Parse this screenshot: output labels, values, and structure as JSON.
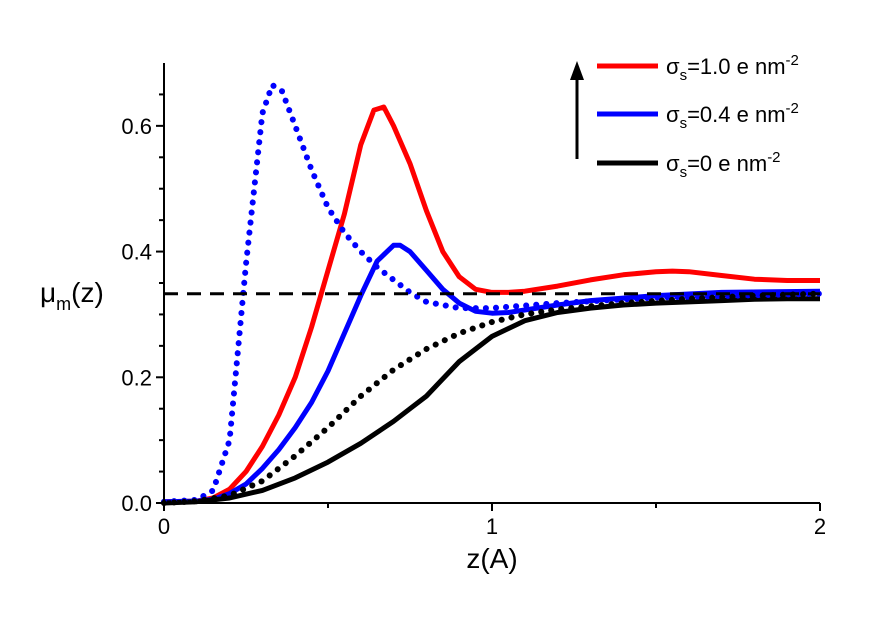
{
  "chart_data": {
    "type": "line",
    "title": "",
    "xlabel": "z(A)",
    "ylabel": {
      "base": "μ",
      "sub": "m",
      "rest": "(z)"
    },
    "xlim": [
      0,
      2
    ],
    "ylim": [
      0,
      0.7
    ],
    "xticks": [
      0,
      1,
      2
    ],
    "xtick_labels": [
      "0",
      "1",
      "2"
    ],
    "yticks": [
      0.0,
      0.2,
      0.4,
      0.6
    ],
    "ytick_labels": [
      "0.0",
      "0.2",
      "0.4",
      "0.6"
    ],
    "grid": false,
    "legend_position": "top-right",
    "legend_arrow": "upward arrow beside legend indicating increasing surface charge",
    "series": [
      {
        "name": "σs=1.0 e nm-2",
        "label_parts": {
          "sym": "σ",
          "sub": "s",
          "value": "=1.0 e nm",
          "sup": "-2"
        },
        "color": "#ff0000",
        "style": "solid",
        "in_legend": true,
        "x": [
          0,
          0.1,
          0.15,
          0.2,
          0.25,
          0.3,
          0.35,
          0.4,
          0.45,
          0.5,
          0.55,
          0.6,
          0.64,
          0.67,
          0.7,
          0.75,
          0.8,
          0.85,
          0.9,
          0.95,
          1.0,
          1.05,
          1.1,
          1.2,
          1.3,
          1.4,
          1.5,
          1.55,
          1.6,
          1.7,
          1.8,
          1.9,
          2.0
        ],
        "y": [
          0.002,
          0.003,
          0.008,
          0.022,
          0.05,
          0.09,
          0.14,
          0.2,
          0.28,
          0.37,
          0.46,
          0.57,
          0.625,
          0.63,
          0.6,
          0.54,
          0.465,
          0.4,
          0.36,
          0.34,
          0.335,
          0.335,
          0.337,
          0.345,
          0.355,
          0.363,
          0.368,
          0.369,
          0.368,
          0.362,
          0.356,
          0.354,
          0.354
        ]
      },
      {
        "name": "σs=0.4 e nm-2",
        "label_parts": {
          "sym": "σ",
          "sub": "s",
          "value": "=0.4 e nm",
          "sup": "-2"
        },
        "color": "#0000ff",
        "style": "solid",
        "in_legend": true,
        "x": [
          0,
          0.1,
          0.15,
          0.2,
          0.25,
          0.3,
          0.35,
          0.4,
          0.45,
          0.5,
          0.55,
          0.6,
          0.65,
          0.7,
          0.72,
          0.75,
          0.8,
          0.85,
          0.9,
          0.95,
          1.0,
          1.05,
          1.1,
          1.2,
          1.3,
          1.5,
          1.7,
          2.0
        ],
        "y": [
          0.002,
          0.003,
          0.006,
          0.015,
          0.03,
          0.055,
          0.085,
          0.12,
          0.16,
          0.21,
          0.27,
          0.33,
          0.385,
          0.41,
          0.41,
          0.4,
          0.37,
          0.34,
          0.318,
          0.305,
          0.302,
          0.303,
          0.307,
          0.315,
          0.322,
          0.33,
          0.335,
          0.337
        ]
      },
      {
        "name": "σs=0 e nm-2",
        "label_parts": {
          "sym": "σ",
          "sub": "s",
          "value": "=0 e nm",
          "sup": "-2"
        },
        "color": "#000000",
        "style": "solid",
        "in_legend": true,
        "x": [
          0,
          0.1,
          0.2,
          0.3,
          0.4,
          0.5,
          0.6,
          0.7,
          0.75,
          0.8,
          0.9,
          1.0,
          1.1,
          1.2,
          1.3,
          1.4,
          1.5,
          1.6,
          1.7,
          1.8,
          1.9,
          2.0
        ],
        "y": [
          0.0,
          0.002,
          0.008,
          0.02,
          0.04,
          0.065,
          0.095,
          0.13,
          0.15,
          0.17,
          0.225,
          0.265,
          0.29,
          0.303,
          0.31,
          0.315,
          0.318,
          0.32,
          0.322,
          0.324,
          0.325,
          0.325
        ]
      },
      {
        "color": "#0000ff",
        "style": "dotted",
        "in_legend": false,
        "x": [
          0,
          0.1,
          0.15,
          0.2,
          0.25,
          0.3,
          0.33,
          0.36,
          0.4,
          0.45,
          0.5,
          0.55,
          0.6,
          0.65,
          0.7,
          0.75,
          0.8,
          0.9,
          1.0,
          1.2,
          1.5,
          2.0
        ],
        "y": [
          0.002,
          0.005,
          0.02,
          0.1,
          0.38,
          0.62,
          0.665,
          0.655,
          0.6,
          0.53,
          0.47,
          0.43,
          0.4,
          0.375,
          0.355,
          0.335,
          0.32,
          0.31,
          0.31,
          0.318,
          0.327,
          0.333
        ]
      },
      {
        "color": "#000000",
        "style": "dotted",
        "in_legend": false,
        "x": [
          0,
          0.1,
          0.2,
          0.3,
          0.4,
          0.5,
          0.6,
          0.7,
          0.8,
          0.9,
          1.0,
          1.1,
          1.2,
          1.4,
          1.6,
          1.8,
          2.0
        ],
        "y": [
          0.0,
          0.003,
          0.012,
          0.035,
          0.075,
          0.12,
          0.17,
          0.212,
          0.245,
          0.27,
          0.288,
          0.3,
          0.308,
          0.318,
          0.325,
          0.33,
          0.333
        ]
      },
      {
        "color": "#000000",
        "style": "dashed",
        "in_legend": false,
        "x": [
          0,
          2.0
        ],
        "y": [
          0.333,
          0.333
        ]
      }
    ]
  }
}
